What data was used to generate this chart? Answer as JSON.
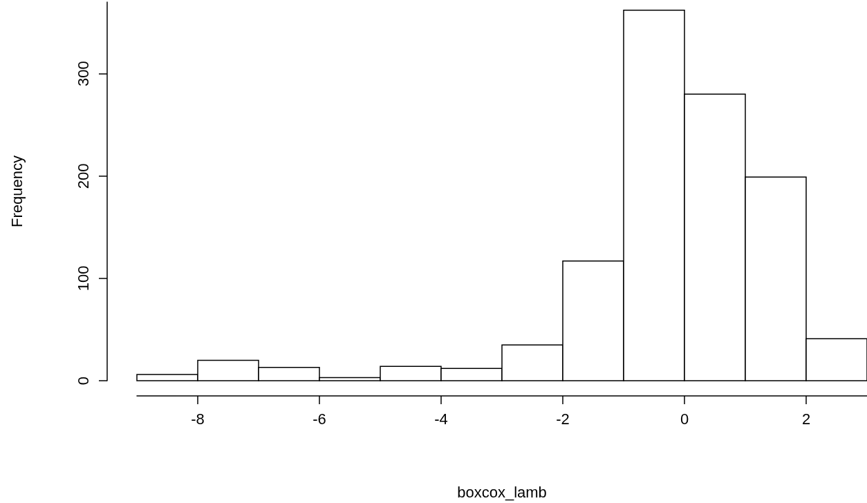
{
  "chart_data": {
    "type": "histogram",
    "xlabel": "boxcox_lamb",
    "ylabel": "Frequency",
    "bins": [
      -9,
      -8,
      -7,
      -6,
      -5,
      -4,
      -3,
      -2,
      -1,
      0,
      1,
      2,
      3
    ],
    "values": [
      6,
      20,
      13,
      3,
      14,
      12,
      35,
      117,
      362,
      280,
      199,
      41
    ],
    "color": "#ffffff",
    "xlim": [
      -9,
      3
    ],
    "xticks": [
      -8,
      -6,
      -4,
      -2,
      0,
      2
    ],
    "ylim": [
      0,
      370
    ],
    "yticks": [
      0,
      100,
      200,
      300
    ]
  }
}
